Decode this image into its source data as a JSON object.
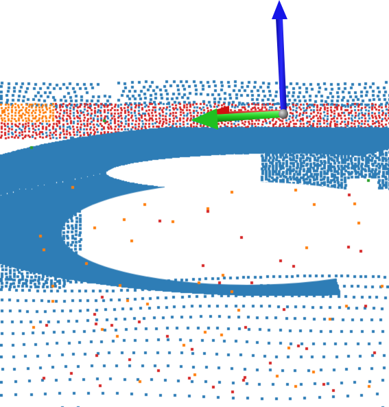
{
  "viewer": {
    "background_color": "#ffffff",
    "point_colors": {
      "ground": "#2e7db6",
      "ring_near": "#d62728",
      "ring_far": "#ff7f0e",
      "sparse": "#2ca02c"
    }
  },
  "axes_gizmo": {
    "x_axis_color": "#e01010",
    "y_axis_color": "#22cc22",
    "z_axis_color": "#1010e0",
    "origin_color": "#7a7a7a",
    "icons": [
      "x-axis-arrow-icon",
      "y-axis-arrow-icon",
      "z-axis-arrow-icon",
      "origin-sphere-icon"
    ]
  }
}
